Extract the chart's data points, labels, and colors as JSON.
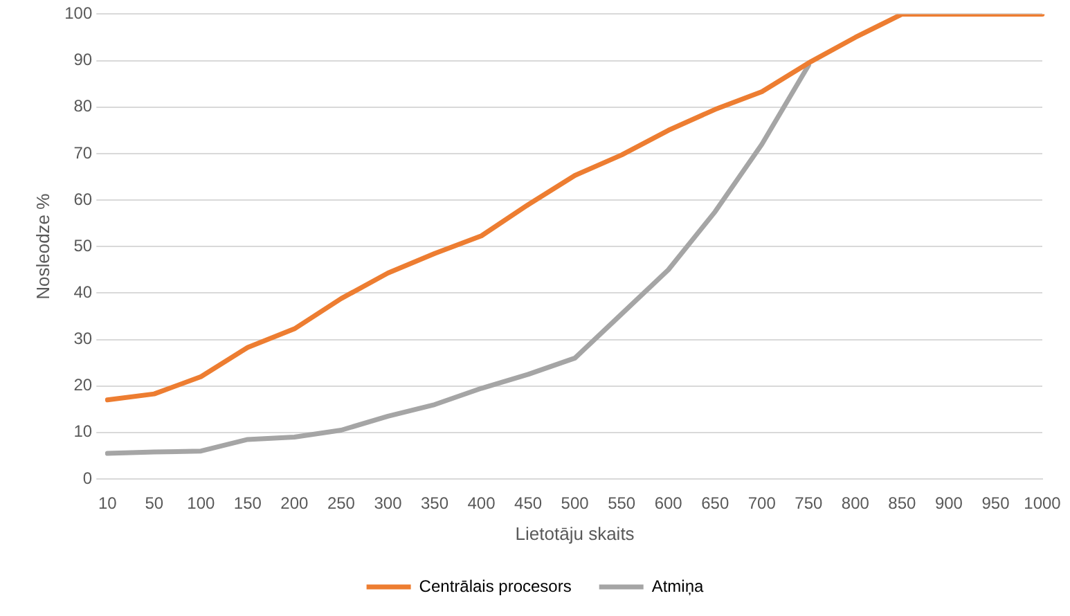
{
  "chart_data": {
    "type": "line",
    "xlabel": "Lietotāju skaits",
    "ylabel": "Nosleodze %",
    "categories": [
      "10",
      "50",
      "100",
      "150",
      "200",
      "250",
      "300",
      "350",
      "400",
      "450",
      "500",
      "550",
      "600",
      "650",
      "700",
      "750",
      "800",
      "850",
      "900",
      "950",
      "1000"
    ],
    "series": [
      {
        "name": "Centrālais procesors",
        "color": "#ed7d31",
        "values": [
          17,
          18.3,
          22,
          28.3,
          32.3,
          38.8,
          44.3,
          48.5,
          52.3,
          59,
          65.3,
          69.7,
          75,
          79.5,
          83.3,
          89.5,
          95,
          100,
          100,
          100,
          100
        ]
      },
      {
        "name": "Atmiņa",
        "color": "#a5a5a5",
        "values": [
          5.5,
          5.8,
          6,
          8.5,
          9,
          10.5,
          13.5,
          16,
          19.5,
          22.5,
          26,
          35.5,
          45,
          57.5,
          72,
          89,
          null,
          null,
          null,
          null,
          null
        ]
      }
    ],
    "ylim": [
      0,
      100
    ],
    "yticks": [
      0,
      10,
      20,
      30,
      40,
      50,
      60,
      70,
      80,
      90,
      100
    ],
    "grid": "y",
    "legend": "bottom",
    "marker": "none",
    "line_style": "solid"
  }
}
